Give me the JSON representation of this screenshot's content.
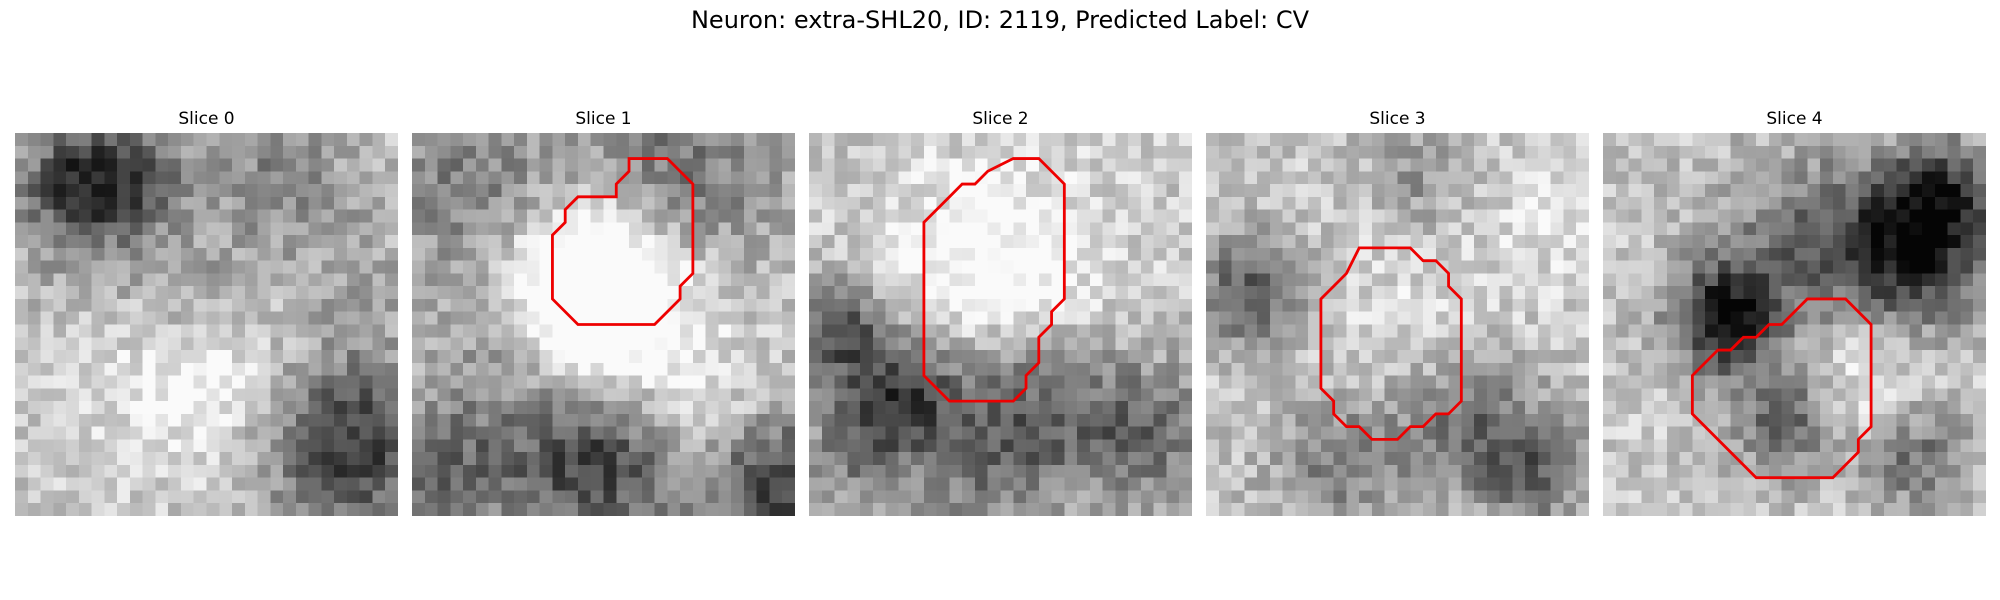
{
  "figure": {
    "title": "Neuron: extra-SHL20, ID: 2119, Predicted Label: CV"
  },
  "panels": [
    {
      "title": "Slice 0",
      "has_outline": false,
      "outline": [],
      "seed": 11,
      "blobs": [
        [
          4,
          3,
          3,
          0.45
        ],
        [
          9,
          3,
          3,
          0.4
        ],
        [
          5,
          8,
          4,
          0.18
        ],
        [
          14,
          12,
          3,
          0.18
        ],
        [
          26,
          10,
          5,
          0.1
        ],
        [
          26,
          24,
          5,
          0.55
        ],
        [
          20,
          3,
          4,
          0.25
        ],
        [
          14,
          19,
          5,
          -0.2
        ]
      ]
    },
    {
      "title": "Slice 1",
      "has_outline": true,
      "outline": [
        [
          17,
          2
        ],
        [
          20,
          2
        ],
        [
          22,
          4
        ],
        [
          22,
          11
        ],
        [
          21,
          12
        ],
        [
          21,
          13
        ],
        [
          20,
          14
        ],
        [
          19,
          15
        ],
        [
          13,
          15
        ],
        [
          11,
          13
        ],
        [
          11,
          8
        ],
        [
          12,
          7
        ],
        [
          12,
          6
        ],
        [
          13,
          5
        ],
        [
          16,
          5
        ],
        [
          16,
          4
        ],
        [
          17,
          3
        ]
      ],
      "seed": 23,
      "blobs": [
        [
          14,
          12,
          5,
          -0.75
        ],
        [
          20,
          3,
          6,
          0.35
        ],
        [
          6,
          16,
          4,
          0.2
        ],
        [
          22,
          22,
          4,
          -0.2
        ],
        [
          14,
          25,
          5,
          0.55
        ],
        [
          28,
          27,
          4,
          0.55
        ],
        [
          4,
          4,
          5,
          0.3
        ],
        [
          2,
          26,
          4,
          0.35
        ]
      ]
    },
    {
      "title": "Slice 2",
      "has_outline": true,
      "outline": [
        [
          16,
          2
        ],
        [
          18,
          2
        ],
        [
          20,
          4
        ],
        [
          20,
          13
        ],
        [
          19,
          14
        ],
        [
          19,
          15
        ],
        [
          18,
          16
        ],
        [
          18,
          18
        ],
        [
          17,
          19
        ],
        [
          17,
          20
        ],
        [
          16,
          21
        ],
        [
          11,
          21
        ],
        [
          9,
          19
        ],
        [
          9,
          7
        ],
        [
          10,
          6
        ],
        [
          11,
          5
        ],
        [
          12,
          4
        ],
        [
          13,
          4
        ],
        [
          14,
          3
        ]
      ],
      "seed": 37,
      "blobs": [
        [
          14,
          11,
          6,
          -0.3
        ],
        [
          2,
          15,
          3,
          0.5
        ],
        [
          7,
          20,
          3,
          0.45
        ],
        [
          16,
          21,
          5,
          0.45
        ],
        [
          26,
          23,
          4,
          0.35
        ],
        [
          3,
          24,
          3,
          0.3
        ],
        [
          12,
          28,
          4,
          0.15
        ]
      ]
    },
    {
      "title": "Slice 3",
      "has_outline": true,
      "outline": [
        [
          12,
          9
        ],
        [
          16,
          9
        ],
        [
          17,
          10
        ],
        [
          18,
          10
        ],
        [
          19,
          11
        ],
        [
          19,
          12
        ],
        [
          20,
          13
        ],
        [
          20,
          21
        ],
        [
          19,
          22
        ],
        [
          18,
          22
        ],
        [
          17,
          23
        ],
        [
          16,
          23
        ],
        [
          15,
          24
        ],
        [
          13,
          24
        ],
        [
          12,
          23
        ],
        [
          11,
          23
        ],
        [
          10,
          22
        ],
        [
          10,
          21
        ],
        [
          9,
          20
        ],
        [
          9,
          13
        ],
        [
          10,
          12
        ],
        [
          11,
          11
        ]
      ],
      "seed": 53,
      "blobs": [
        [
          15,
          16,
          6,
          -0.1
        ],
        [
          3,
          12,
          3,
          0.45
        ],
        [
          20,
          22,
          4,
          0.35
        ],
        [
          10,
          25,
          4,
          0.3
        ],
        [
          25,
          26,
          3,
          0.35
        ],
        [
          16,
          3,
          3,
          0.2
        ],
        [
          27,
          6,
          4,
          -0.1
        ]
      ]
    },
    {
      "title": "Slice 4",
      "has_outline": true,
      "outline": [
        [
          16,
          13
        ],
        [
          19,
          13
        ],
        [
          21,
          15
        ],
        [
          21,
          23
        ],
        [
          20,
          24
        ],
        [
          20,
          25
        ],
        [
          18,
          27
        ],
        [
          12,
          27
        ],
        [
          7,
          22
        ],
        [
          7,
          19
        ],
        [
          8,
          18
        ],
        [
          9,
          17
        ],
        [
          10,
          17
        ],
        [
          11,
          16
        ],
        [
          12,
          16
        ],
        [
          13,
          15
        ],
        [
          14,
          15
        ],
        [
          15,
          14
        ]
      ],
      "seed": 71,
      "blobs": [
        [
          9,
          14,
          3,
          0.7
        ],
        [
          16,
          8,
          5,
          0.35
        ],
        [
          24,
          9,
          4,
          0.6
        ],
        [
          26,
          4,
          3,
          0.45
        ],
        [
          14,
          22,
          3,
          0.45
        ],
        [
          24,
          25,
          3,
          0.35
        ],
        [
          19,
          19,
          4,
          -0.2
        ]
      ]
    }
  ]
}
